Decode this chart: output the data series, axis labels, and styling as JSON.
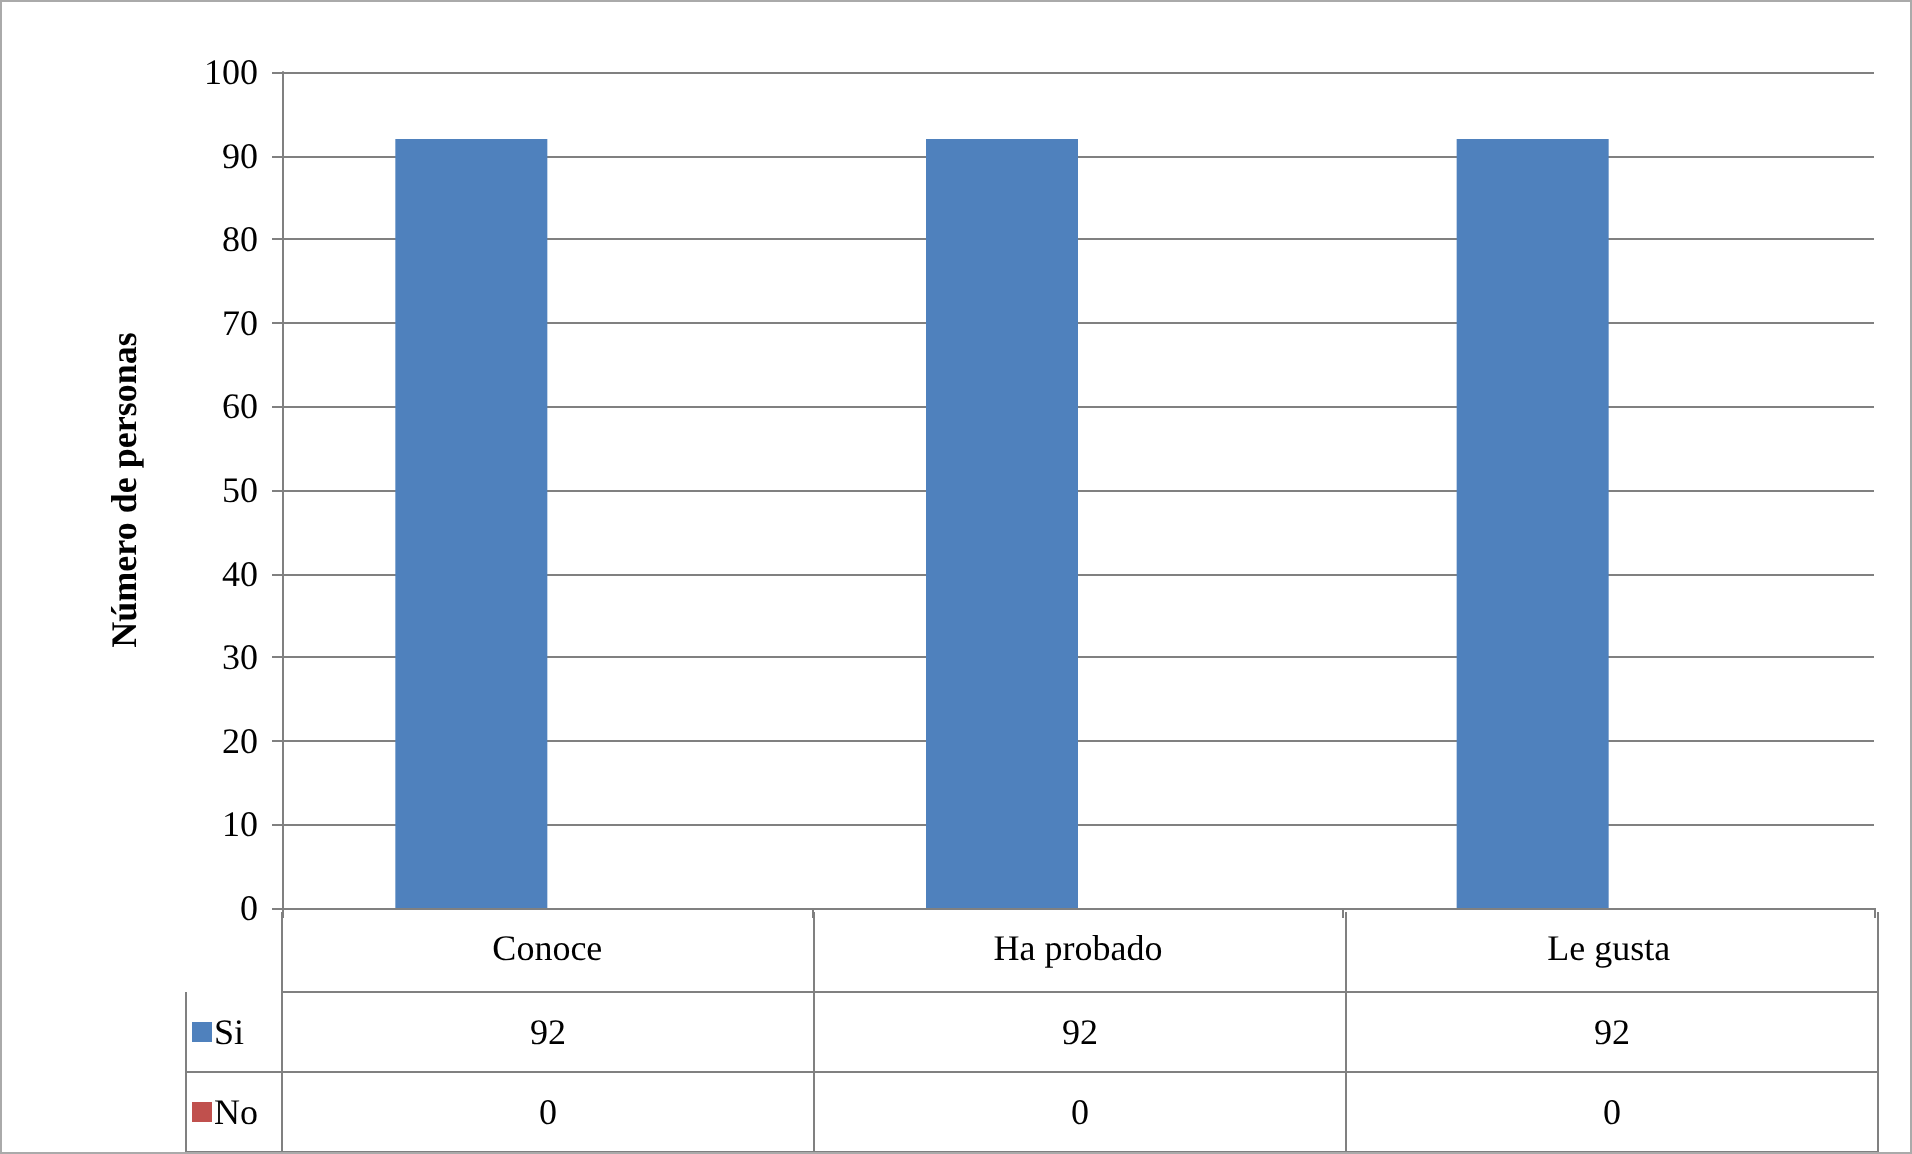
{
  "chart_data": {
    "type": "bar",
    "ylabel": "Número de personas",
    "categories": [
      "Conoce",
      "Ha probado",
      "Le gusta"
    ],
    "series": [
      {
        "name": "Si",
        "color": "#4f81bd",
        "values": [
          92,
          92,
          92
        ]
      },
      {
        "name": "No",
        "color": "#c0504d",
        "values": [
          0,
          0,
          0
        ]
      }
    ],
    "ylim": [
      0,
      100
    ],
    "yticks": [
      0,
      10,
      20,
      30,
      40,
      50,
      60,
      70,
      80,
      90,
      100
    ],
    "grid": "y",
    "legend": "bottom",
    "data_labels": true
  }
}
